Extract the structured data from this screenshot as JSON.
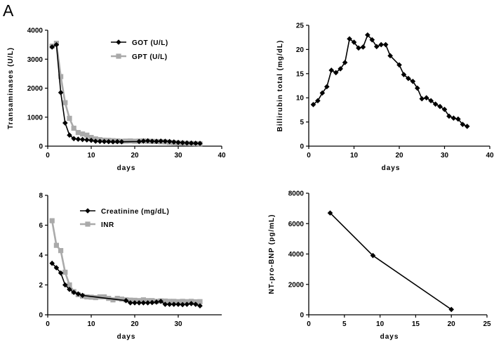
{
  "panel_label": "A",
  "chart_data": [
    {
      "type": "line",
      "xlabel": "days",
      "ylabel": "Transaminases (U/L)",
      "xlim": [
        0,
        40
      ],
      "ylim": [
        0,
        4000
      ],
      "xticks": [
        0,
        10,
        20,
        30,
        40
      ],
      "yticks": [
        0,
        1000,
        2000,
        3000,
        4000
      ],
      "legend": "top-right",
      "series": [
        {
          "name": "GOT (U/L)",
          "color": "#000000",
          "marker": "diamond",
          "x": [
            1,
            2,
            3,
            4,
            5,
            6,
            7,
            8,
            9,
            10,
            11,
            12,
            13,
            14,
            15,
            16,
            17,
            21,
            22,
            23,
            24,
            25,
            26,
            27,
            28,
            29,
            30,
            31,
            32,
            33,
            34,
            35
          ],
          "y": [
            3420,
            3500,
            1850,
            800,
            380,
            260,
            240,
            230,
            215,
            200,
            170,
            165,
            160,
            155,
            150,
            155,
            150,
            160,
            175,
            185,
            170,
            165,
            175,
            170,
            160,
            145,
            130,
            120,
            110,
            105,
            100,
            95
          ]
        },
        {
          "name": "GPT (U/L)",
          "color": "#aaaaaa",
          "marker": "square",
          "x": [
            1,
            2,
            3,
            4,
            5,
            6,
            7,
            8,
            9,
            10,
            11,
            12,
            13,
            14,
            15,
            16,
            17,
            18,
            19,
            20,
            21,
            22,
            23,
            24,
            25,
            26,
            27,
            28,
            29,
            30,
            31,
            32,
            33,
            34,
            35
          ],
          "y": [
            3450,
            3550,
            2400,
            1500,
            960,
            620,
            470,
            420,
            380,
            300,
            250,
            225,
            205,
            200,
            190,
            180,
            170,
            175,
            180,
            170,
            175,
            180,
            170,
            165,
            160,
            150,
            145,
            130,
            120,
            110,
            100,
            95,
            90,
            85,
            80
          ]
        }
      ]
    },
    {
      "type": "line",
      "xlabel": "days",
      "ylabel": "Billirubin total (mg/dL)",
      "xlim": [
        0,
        40
      ],
      "ylim": [
        0,
        25
      ],
      "xticks": [
        0,
        10,
        20,
        30,
        40
      ],
      "yticks": [
        0,
        5,
        10,
        15,
        20,
        25
      ],
      "series": [
        {
          "name": "",
          "color": "#000000",
          "marker": "diamond",
          "x": [
            1,
            2,
            3,
            4,
            5,
            6,
            7,
            8,
            9,
            10,
            11,
            12,
            13,
            14,
            15,
            16,
            17,
            18,
            20,
            21,
            22,
            23,
            24,
            25,
            26,
            27,
            28,
            29,
            30,
            31,
            32,
            33,
            34,
            35
          ],
          "y": [
            8.6,
            9.4,
            11.0,
            12.3,
            15.7,
            15.2,
            16.0,
            17.3,
            22.2,
            21.5,
            20.3,
            20.5,
            23.0,
            22.0,
            20.6,
            21.0,
            21.0,
            18.7,
            16.8,
            14.8,
            14.0,
            13.4,
            12.0,
            9.8,
            10.0,
            9.4,
            8.7,
            8.2,
            7.6,
            6.2,
            5.8,
            5.6,
            4.5,
            4.1
          ]
        }
      ]
    },
    {
      "type": "line",
      "xlabel": "days",
      "ylabel": "",
      "xlim": [
        0,
        40
      ],
      "ylim": [
        0,
        8
      ],
      "xticks": [
        0,
        10,
        20,
        30
      ],
      "yticks": [
        0,
        2,
        4,
        6,
        8
      ],
      "legend": "top-right",
      "series": [
        {
          "name": "Creatinine (mg/dL)",
          "color": "#000000",
          "marker": "diamond",
          "x": [
            1,
            2,
            3,
            4,
            5,
            6,
            7,
            8,
            18,
            19,
            20,
            21,
            22,
            23,
            24,
            25,
            26,
            27,
            28,
            29,
            30,
            31,
            32,
            33,
            34,
            35
          ],
          "y": [
            3.45,
            3.15,
            2.8,
            2.0,
            1.7,
            1.5,
            1.4,
            1.3,
            0.95,
            0.8,
            0.8,
            0.8,
            0.8,
            0.8,
            0.82,
            0.85,
            0.9,
            0.7,
            0.7,
            0.7,
            0.7,
            0.68,
            0.7,
            0.75,
            0.7,
            0.6
          ]
        },
        {
          "name": "INR",
          "color": "#aaaaaa",
          "marker": "square",
          "x": [
            1,
            2,
            3,
            4,
            5,
            6,
            7,
            8,
            9,
            10,
            11,
            12,
            13,
            14,
            15,
            16,
            17,
            18,
            19,
            20,
            21,
            22,
            23,
            24,
            25,
            26,
            27,
            28,
            29,
            30,
            31,
            32,
            33,
            34,
            35
          ],
          "y": [
            6.3,
            4.65,
            4.3,
            2.85,
            2.0,
            1.55,
            1.35,
            1.25,
            1.2,
            1.18,
            1.15,
            1.2,
            1.2,
            1.1,
            1.0,
            1.1,
            1.05,
            1.0,
            0.98,
            0.97,
            0.95,
            1.0,
            0.95,
            0.95,
            0.9,
            0.93,
            0.92,
            0.9,
            0.9,
            0.88,
            0.9,
            0.88,
            0.9,
            0.87,
            0.88
          ]
        }
      ]
    },
    {
      "type": "line",
      "xlabel": "days",
      "ylabel": "NT-pro-BNP (pg/mL)",
      "xlim": [
        0,
        25
      ],
      "ylim": [
        0,
        8000
      ],
      "xticks": [
        0,
        5,
        10,
        15,
        20,
        25
      ],
      "yticks": [
        0,
        2000,
        4000,
        6000,
        8000
      ],
      "series": [
        {
          "name": "",
          "color": "#000000",
          "marker": "diamond",
          "x": [
            3,
            9,
            20
          ],
          "y": [
            6700,
            3900,
            350
          ]
        }
      ]
    }
  ]
}
